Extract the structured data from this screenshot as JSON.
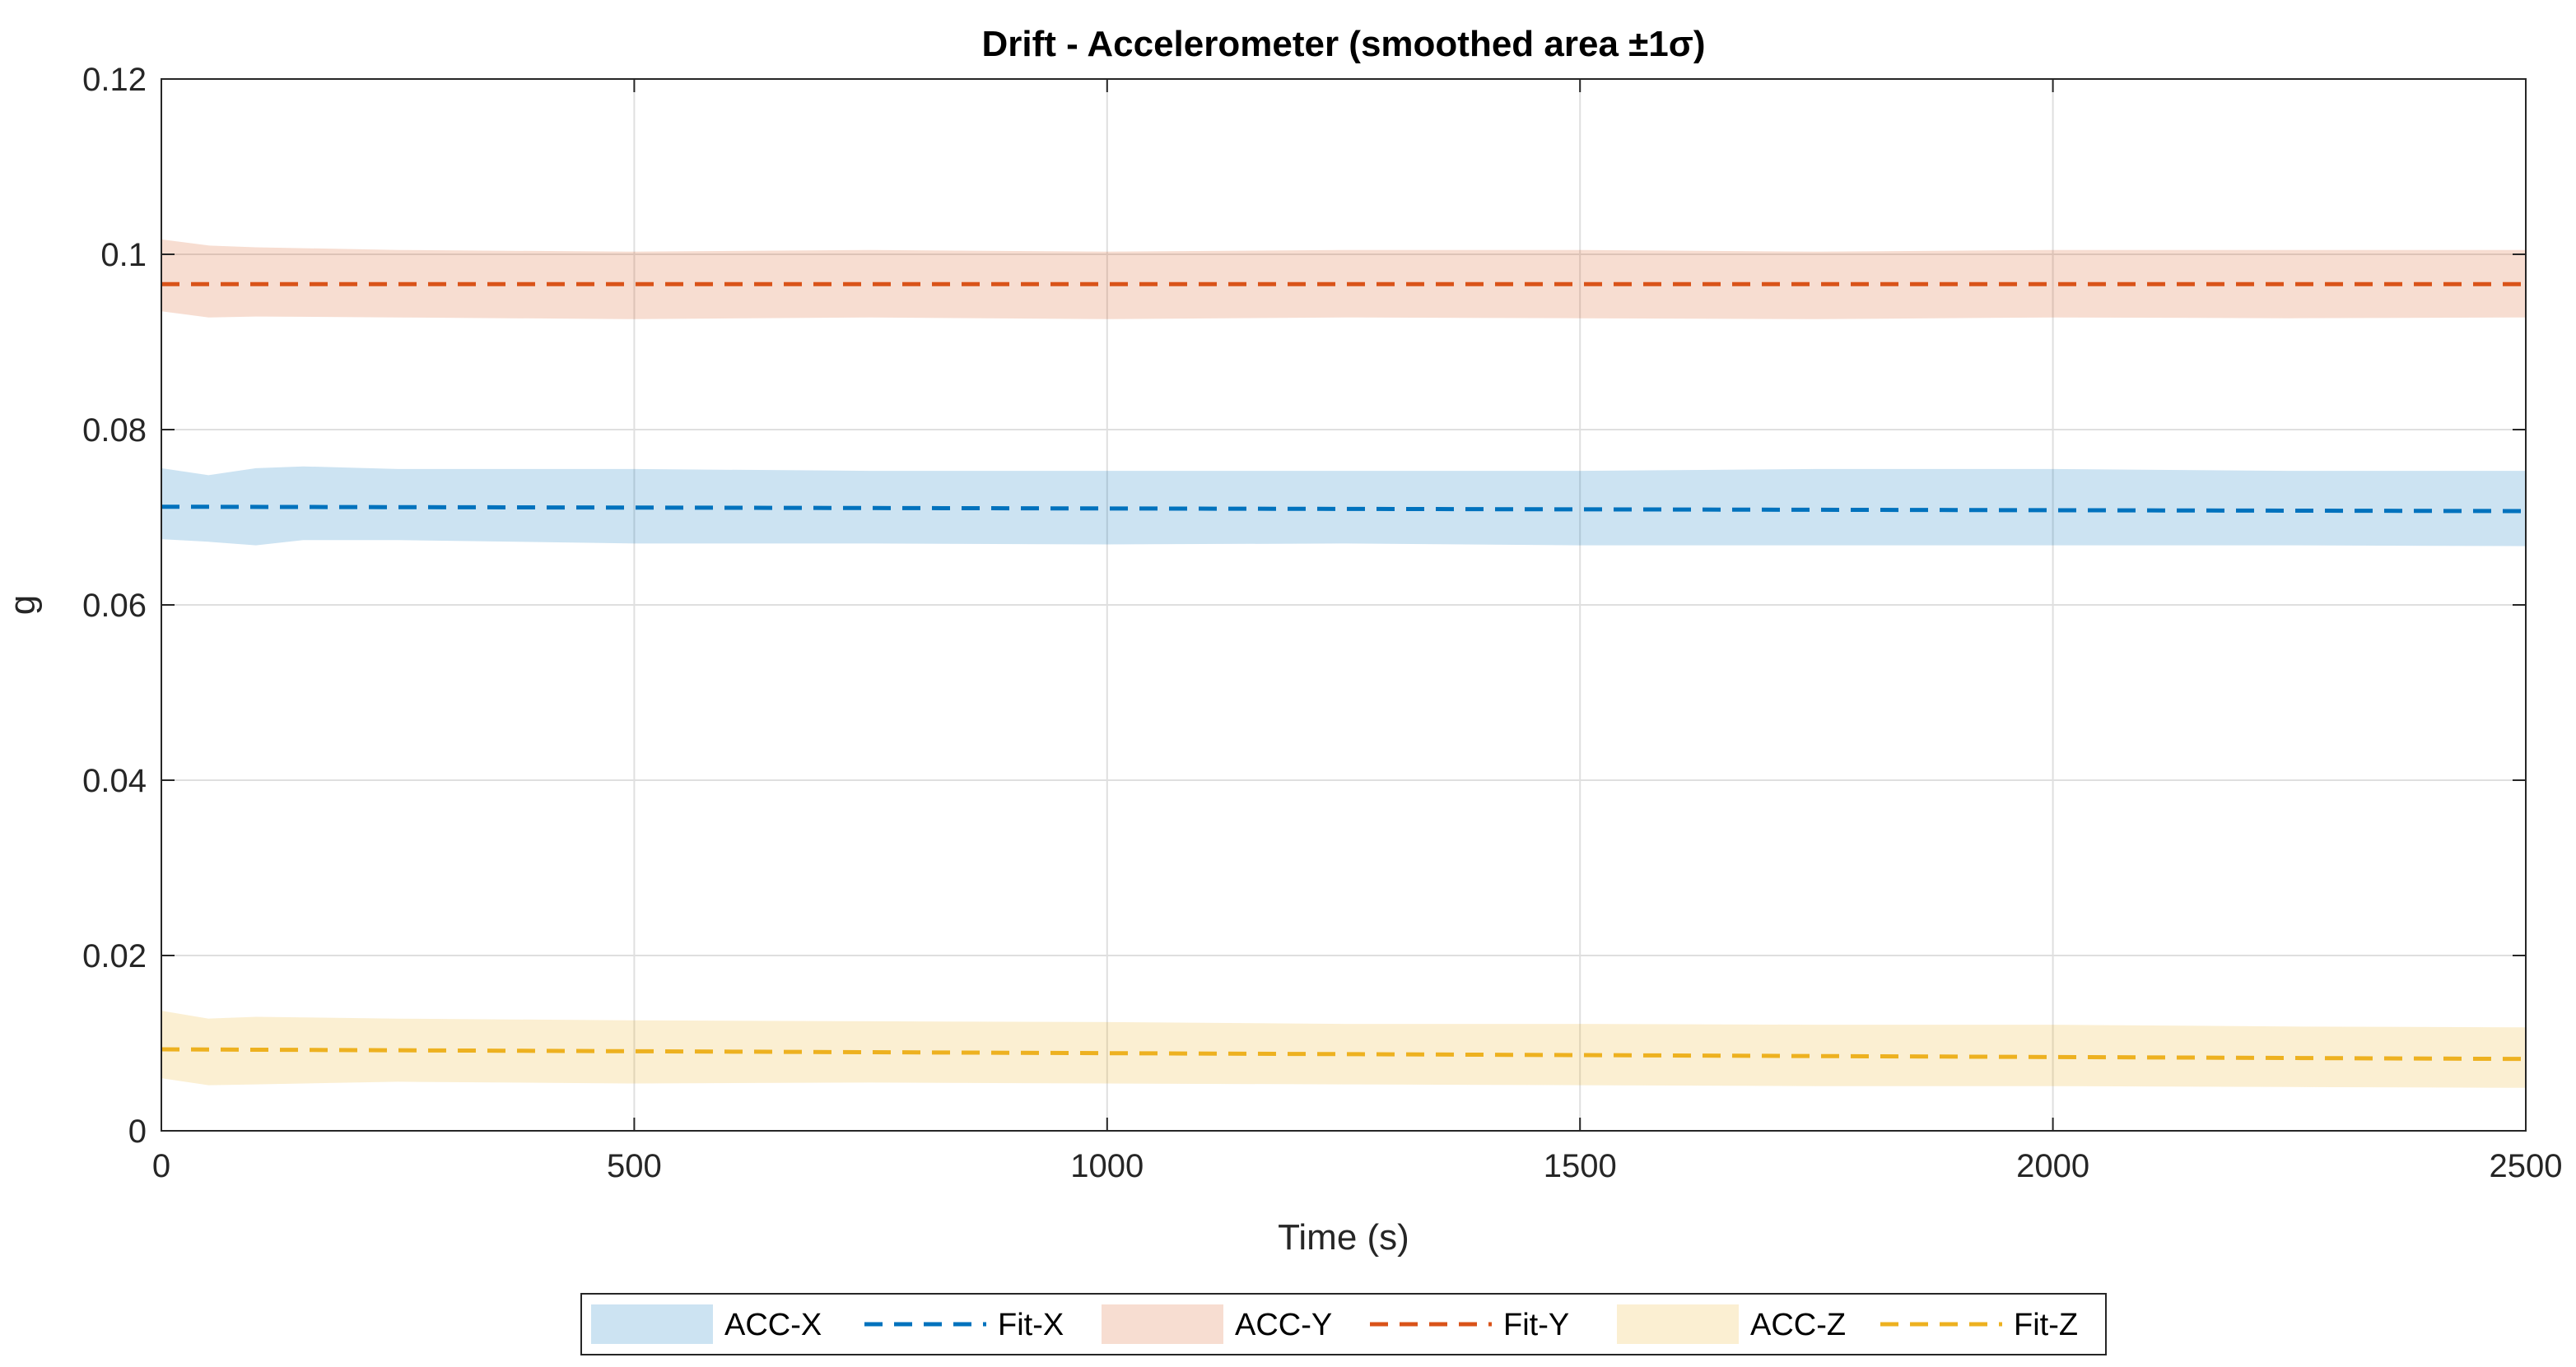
{
  "chart_data": {
    "type": "area",
    "title": "Drift - Accelerometer (smoothed area ±1σ)",
    "xlabel": "Time (s)",
    "ylabel": "g",
    "xlim": [
      0,
      2500
    ],
    "ylim": [
      0,
      0.12
    ],
    "xticks": [
      0,
      500,
      1000,
      1500,
      2000,
      2500
    ],
    "xtick_labels": [
      "0",
      "500",
      "1000",
      "1500",
      "2000",
      "2500"
    ],
    "yticks": [
      0,
      0.02,
      0.04,
      0.06,
      0.08,
      0.1,
      0.12
    ],
    "ytick_labels": [
      "0",
      "0.02",
      "0.04",
      "0.06",
      "0.08",
      "0.1",
      "0.12"
    ],
    "grid": true,
    "legend_position": "bottom-outside",
    "series": [
      {
        "name": "ACC-X",
        "kind": "band",
        "color": "#0072BD",
        "x": [
          0,
          50,
          100,
          150,
          250,
          500,
          750,
          1000,
          1250,
          1500,
          1750,
          2000,
          2250,
          2500
        ],
        "upper": [
          0.0756,
          0.0748,
          0.0756,
          0.0758,
          0.0755,
          0.0755,
          0.0753,
          0.0753,
          0.0753,
          0.0753,
          0.0755,
          0.0755,
          0.0753,
          0.0753
        ],
        "lower": [
          0.0675,
          0.0672,
          0.0668,
          0.0674,
          0.0674,
          0.067,
          0.067,
          0.0669,
          0.067,
          0.0668,
          0.0668,
          0.0668,
          0.0668,
          0.0667
        ]
      },
      {
        "name": "Fit-X",
        "kind": "fit",
        "color": "#0072BD",
        "x": [
          0,
          2500
        ],
        "y": [
          0.0712,
          0.0707
        ]
      },
      {
        "name": "ACC-Y",
        "kind": "band",
        "color": "#D95319",
        "x": [
          0,
          50,
          100,
          250,
          500,
          750,
          1000,
          1250,
          1500,
          1750,
          2000,
          2250,
          2500
        ],
        "upper": [
          0.1017,
          0.101,
          0.1008,
          0.1005,
          0.1003,
          0.1005,
          0.1003,
          0.1005,
          0.1005,
          0.1003,
          0.1005,
          0.1005,
          0.1005
        ],
        "lower": [
          0.0935,
          0.0928,
          0.0929,
          0.0928,
          0.0926,
          0.0928,
          0.0926,
          0.0928,
          0.0927,
          0.0926,
          0.0928,
          0.0927,
          0.0928
        ]
      },
      {
        "name": "Fit-Y",
        "kind": "fit",
        "color": "#D95319",
        "x": [
          0,
          2500
        ],
        "y": [
          0.0966,
          0.0966
        ]
      },
      {
        "name": "ACC-Z",
        "kind": "band",
        "color": "#EDB120",
        "x": [
          0,
          50,
          100,
          250,
          500,
          750,
          1000,
          1250,
          1500,
          1750,
          2000,
          2250,
          2500
        ],
        "upper": [
          0.0137,
          0.0128,
          0.013,
          0.0128,
          0.0126,
          0.0125,
          0.0124,
          0.0122,
          0.0122,
          0.0121,
          0.0121,
          0.0119,
          0.0118
        ],
        "lower": [
          0.006,
          0.0052,
          0.0053,
          0.0056,
          0.0054,
          0.0055,
          0.0054,
          0.0053,
          0.0052,
          0.0051,
          0.0051,
          0.005,
          0.0049
        ]
      },
      {
        "name": "Fit-Z",
        "kind": "fit",
        "color": "#EDB120",
        "x": [
          0,
          2500
        ],
        "y": [
          0.0093,
          0.0082
        ]
      }
    ]
  }
}
